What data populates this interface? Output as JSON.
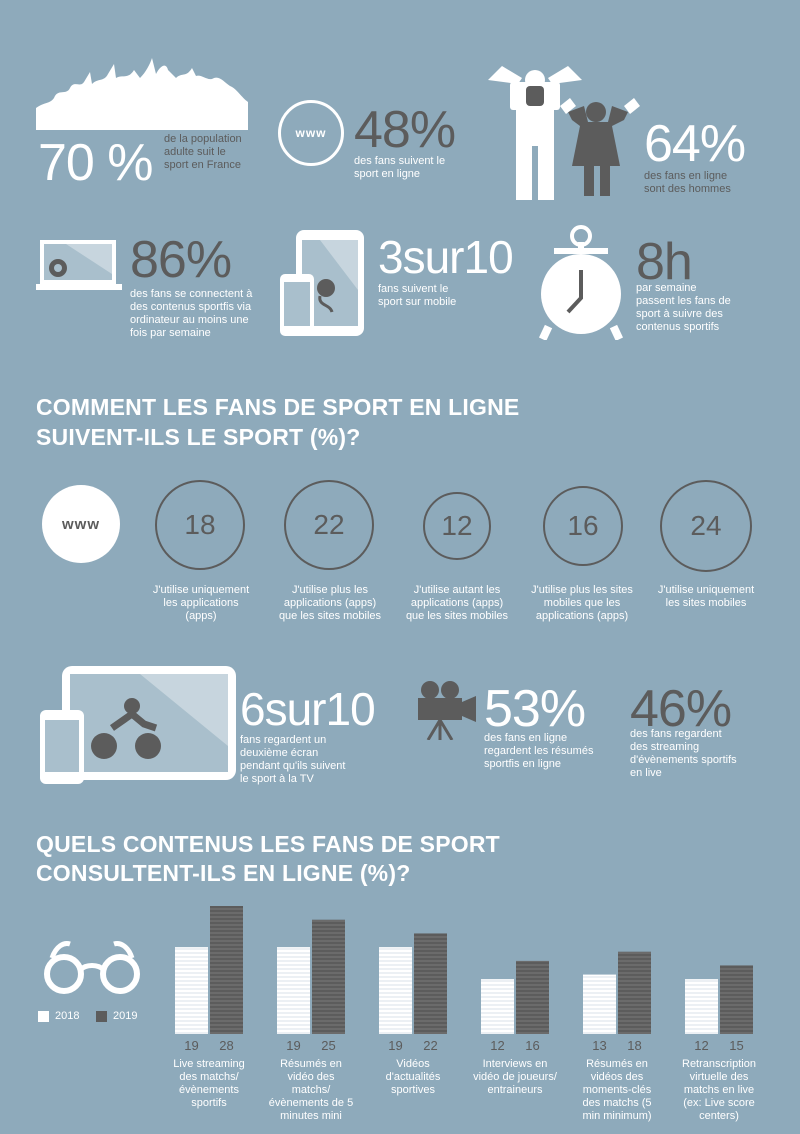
{
  "stats_top": {
    "s70": {
      "value": "70 %",
      "text": "de la population adulte suit le sport en France"
    },
    "s48": {
      "value": "48%",
      "text": "des fans suivent le sport en ligne",
      "icon_label": "www"
    },
    "s64": {
      "value": "64%",
      "text": "des fans en ligne sont des hommes"
    },
    "s86": {
      "value": "86%",
      "text": "des fans se connectent à des contenus sportfis via ordinateur au moins une fois par semaine"
    },
    "s3sur10": {
      "value": "3sur10",
      "text": "fans suivent le sport sur mobile"
    },
    "s8h": {
      "value": "8h",
      "text": "par semaine passent les fans de sport à suivre des contenus sportifs"
    }
  },
  "section1": {
    "title_line1": "COMMENT LES FANS DE SPORT EN LIGNE",
    "title_line2": "SUIVENT-ILS LE SPORT (%)?",
    "icon_label": "www",
    "items": [
      {
        "value": "18",
        "label": "J'utilise uniquement les applications (apps)"
      },
      {
        "value": "22",
        "label": "J'utilise plus les applications (apps) que les sites mobiles"
      },
      {
        "value": "12",
        "label": "J'utilise autant les applications (apps) que les sites mobiles"
      },
      {
        "value": "16",
        "label": "J'utilise plus les sites mobiles que les applications (apps)"
      },
      {
        "value": "24",
        "label": "J'utilise uniquement les sites mobiles"
      }
    ]
  },
  "stats_mid": {
    "s6sur10": {
      "value": "6sur10",
      "text": "fans regardent un deuxième écran pendant qu'ils suivent le sport à la TV"
    },
    "s53": {
      "value": "53%",
      "text": "des fans en ligne regardent les résumés sportfis en ligne"
    },
    "s46": {
      "value": "46%",
      "text": "des fans regardent des streaming d'évènements sportifs en live"
    }
  },
  "section2": {
    "title_line1": "QUELS CONTENUS LES FANS DE SPORT",
    "title_line2": "CONSULTENT-ILS EN LIGNE (%)?",
    "legend": {
      "y2018": "2018",
      "y2019": "2019"
    }
  },
  "chart_data": {
    "type": "bar",
    "categories": [
      "Live streaming des matchs/ évènements sportifs",
      "Résumés en vidéo des matchs/ évènements de 5 minutes mini",
      "Vidéos d'actualités sportives",
      "Interviews en vidéo de joueurs/ entraineurs",
      "Résumés en vidéos des moments-clés des matchs (5 min minimum)",
      "Retranscription virtuelle des matchs en live (ex: Live score centers)"
    ],
    "series": [
      {
        "name": "2018",
        "values": [
          19,
          19,
          19,
          12,
          13,
          12
        ],
        "color": "#ffffff"
      },
      {
        "name": "2019",
        "values": [
          28,
          25,
          22,
          16,
          18,
          15
        ],
        "color": "#5c5c5c"
      }
    ],
    "ylim": [
      0,
      28
    ],
    "legend": "left",
    "grid": false
  },
  "colors": {
    "background": "#8eaabb",
    "dark": "#5c5c5c",
    "light": "#ffffff"
  }
}
